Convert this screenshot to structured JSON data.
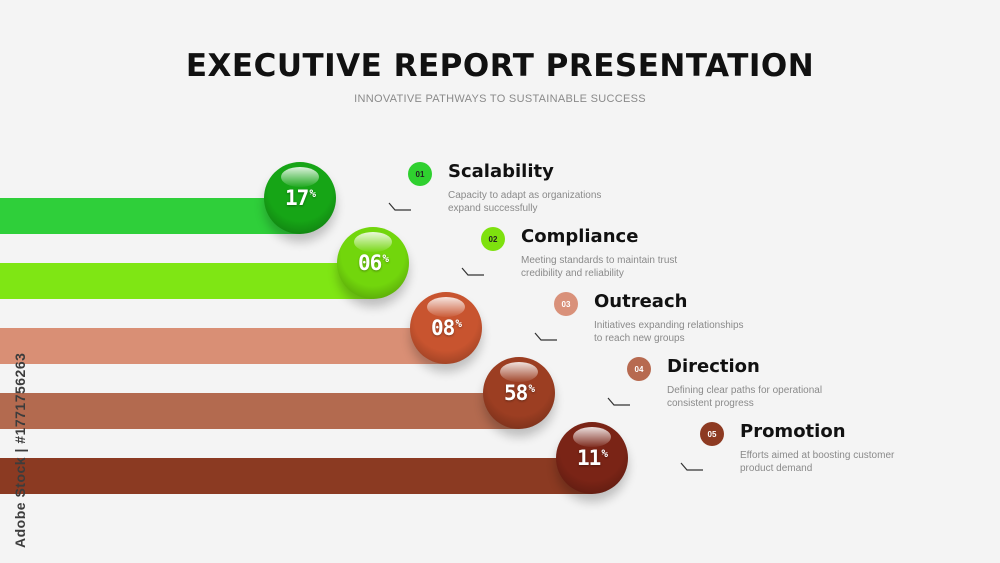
{
  "title": "EXECUTIVE REPORT PRESENTATION",
  "subtitle": "INNOVATIVE PATHWAYS TO SUSTAINABLE SUCCESS",
  "watermark": "Adobe Stock | #1771756263",
  "items": [
    {
      "number": "01",
      "percent": "17",
      "percent_symbol": "%",
      "heading": "Scalability",
      "line1": "Capacity to adapt as organizations",
      "line2": "expand successfully",
      "bar_color": "#2fcf3a",
      "ball_color": "#16a516",
      "badge_color": "#2fd02f"
    },
    {
      "number": "02",
      "percent": "06",
      "percent_symbol": "%",
      "heading": "Compliance",
      "line1": "Meeting standards to maintain trust",
      "line2": "credibility and reliability",
      "bar_color": "#7fe614",
      "ball_color": "#72d60c",
      "badge_color": "#7ee10e"
    },
    {
      "number": "03",
      "percent": "08",
      "percent_symbol": "%",
      "heading": "Outreach",
      "line1": "Initiatives expanding relationships",
      "line2": "to reach new groups",
      "bar_color": "#d98f75",
      "ball_color": "#c8542f",
      "badge_color": "#d9917a"
    },
    {
      "number": "04",
      "percent": "58",
      "percent_symbol": "%",
      "heading": "Direction",
      "line1": "Defining clear paths for operational",
      "line2": "consistent progress",
      "bar_color": "#b36a4f",
      "ball_color": "#9c3e22",
      "badge_color": "#b76a50"
    },
    {
      "number": "05",
      "percent": "11",
      "percent_symbol": "%",
      "heading": "Promotion",
      "line1": "Efforts aimed at boosting customer",
      "line2": "product demand",
      "bar_color": "#8b3a22",
      "ball_color": "#7a2416",
      "badge_color": "#8d3a22"
    }
  ]
}
